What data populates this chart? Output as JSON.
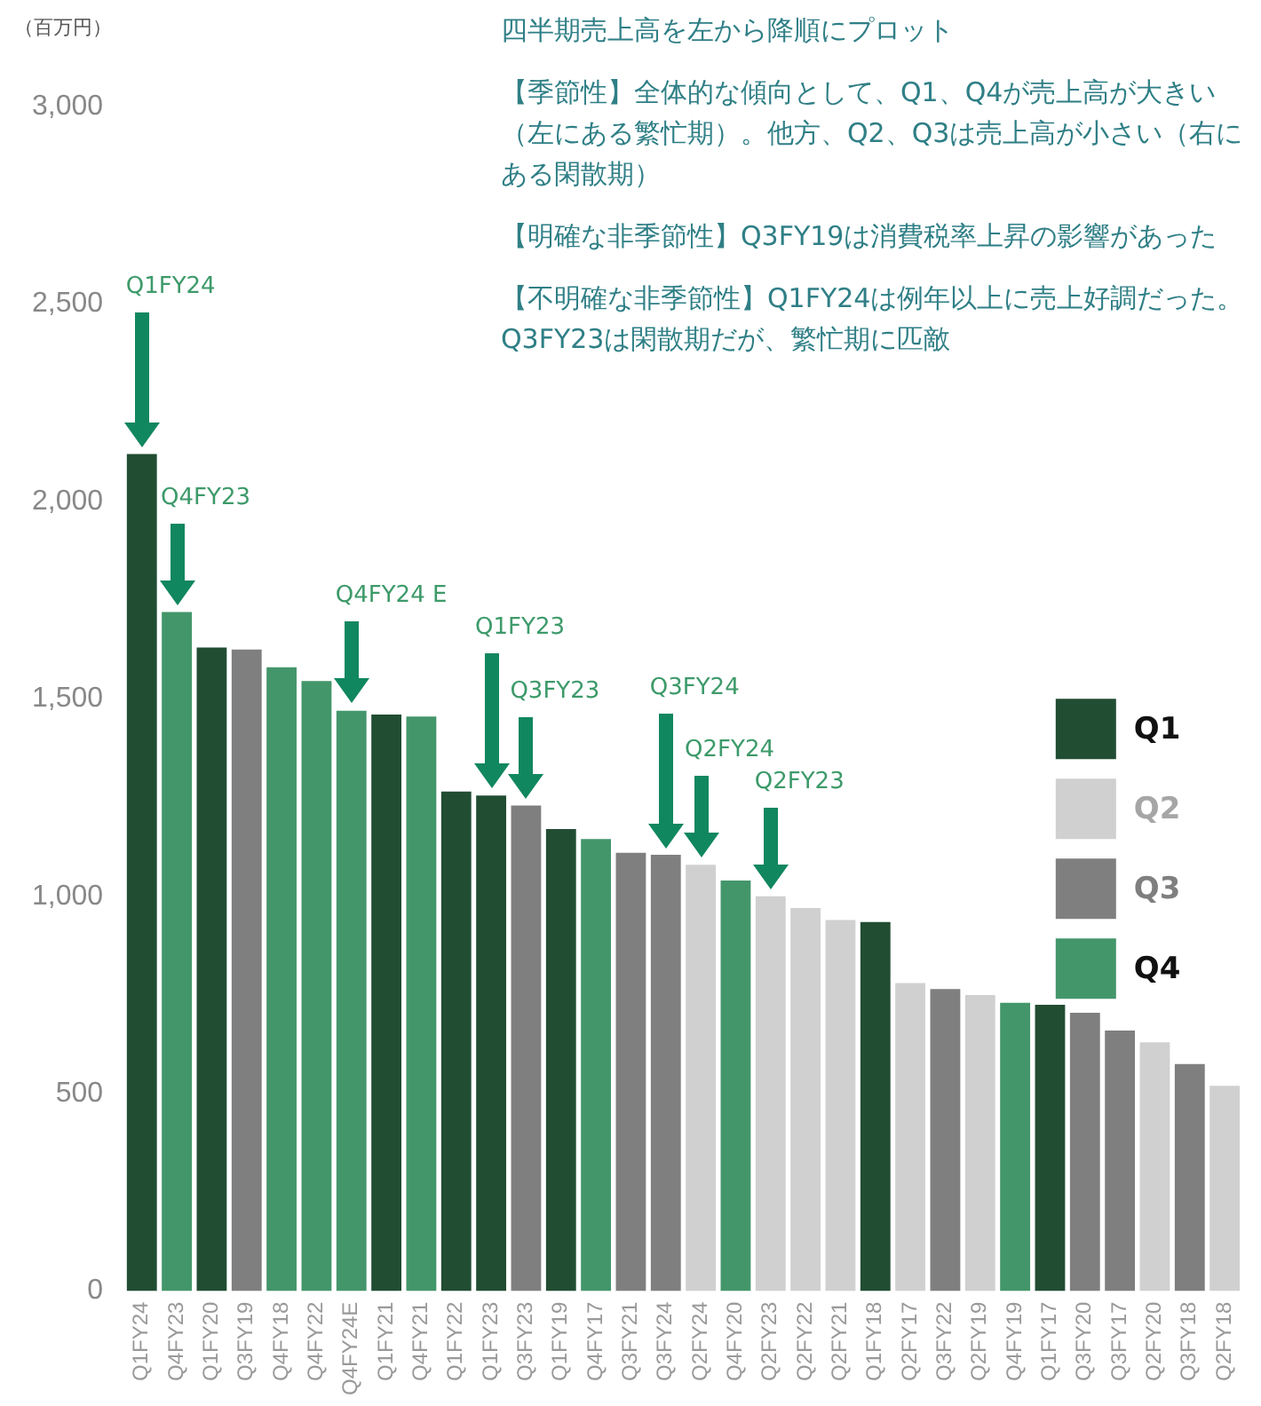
{
  "chart_data": {
    "type": "bar",
    "title": "四半期売上高を左から降順にプロット",
    "ylabel": "（百万円）",
    "annotations": [
      "【季節性】全体的な傾向として、Q1、Q4が売上高が大きい（左にある繁忙期）。他方、Q2、Q3は売上高が小さい（右にある閑散期）",
      "【明確な非季節性】Q3FY19は消費税率上昇の影響があった",
      "【不明確な非季節性】Q1FY24は例年以上に売上好調だった。Q3FY23は閑散期だが、繁忙期に匹敵",
      "Q1FY24",
      "Q4FY23",
      "Q4FY24 E",
      "Q1FY23",
      "Q3FY23",
      "Q3FY24",
      "Q2FY24",
      "Q2FY23"
    ],
    "categories": [
      "Q1FY24",
      "Q4FY23",
      "Q1FY20",
      "Q3FY19",
      "Q4FY18",
      "Q4FY22",
      "Q4FY24E",
      "Q1FY21",
      "Q4FY21",
      "Q1FY22",
      "Q1FY23",
      "Q3FY23",
      "Q1FY19",
      "Q4FY17",
      "Q3FY21",
      "Q3FY24",
      "Q2FY24",
      "Q4FY20",
      "Q2FY23",
      "Q2FY22",
      "Q2FY21",
      "Q1FY18",
      "Q2FY17",
      "Q3FY22",
      "Q2FY19",
      "Q4FY19",
      "Q1FY17",
      "Q3FY20",
      "Q3FY17",
      "Q2FY20",
      "Q3FY18",
      "Q2FY18"
    ],
    "series": [
      {
        "name": "Q1",
        "color": "#214d33",
        "values": [
          2120,
          null,
          1630,
          null,
          null,
          null,
          null,
          1460,
          null,
          1265,
          1255,
          null,
          1170,
          null,
          null,
          null,
          null,
          null,
          null,
          null,
          null,
          935,
          null,
          null,
          null,
          null,
          725,
          null,
          null,
          null,
          null,
          null
        ]
      },
      {
        "name": "Q2",
        "color": "#d0d0d0",
        "values": [
          null,
          null,
          null,
          null,
          null,
          null,
          null,
          null,
          null,
          null,
          null,
          null,
          null,
          null,
          null,
          null,
          1080,
          null,
          1000,
          970,
          940,
          null,
          780,
          null,
          750,
          null,
          null,
          null,
          null,
          630,
          null,
          520
        ]
      },
      {
        "name": "Q3",
        "color": "#7f7f7f",
        "values": [
          null,
          null,
          null,
          1625,
          null,
          null,
          null,
          null,
          null,
          null,
          null,
          1230,
          null,
          null,
          1110,
          1105,
          null,
          null,
          null,
          null,
          null,
          null,
          null,
          765,
          null,
          null,
          null,
          705,
          660,
          null,
          575,
          null
        ]
      },
      {
        "name": "Q4",
        "color": "#43966a",
        "values": [
          null,
          1720,
          null,
          null,
          1580,
          1545,
          1470,
          null,
          1455,
          null,
          null,
          null,
          null,
          1145,
          null,
          null,
          null,
          1040,
          null,
          null,
          null,
          null,
          null,
          null,
          null,
          730,
          null,
          null,
          null,
          null,
          null,
          null
        ]
      }
    ],
    "ylim": [
      0,
      3000
    ],
    "yticks": [
      0,
      500,
      {
        "value": 1000,
        "label": "1,000"
      },
      {
        "value": 1500,
        "label": "1,500"
      },
      {
        "value": 2000,
        "label": "2,000"
      },
      {
        "value": 2500,
        "label": "2,500"
      },
      {
        "value": 3000,
        "label": "3,000"
      }
    ],
    "grid": false,
    "legend": "right"
  }
}
